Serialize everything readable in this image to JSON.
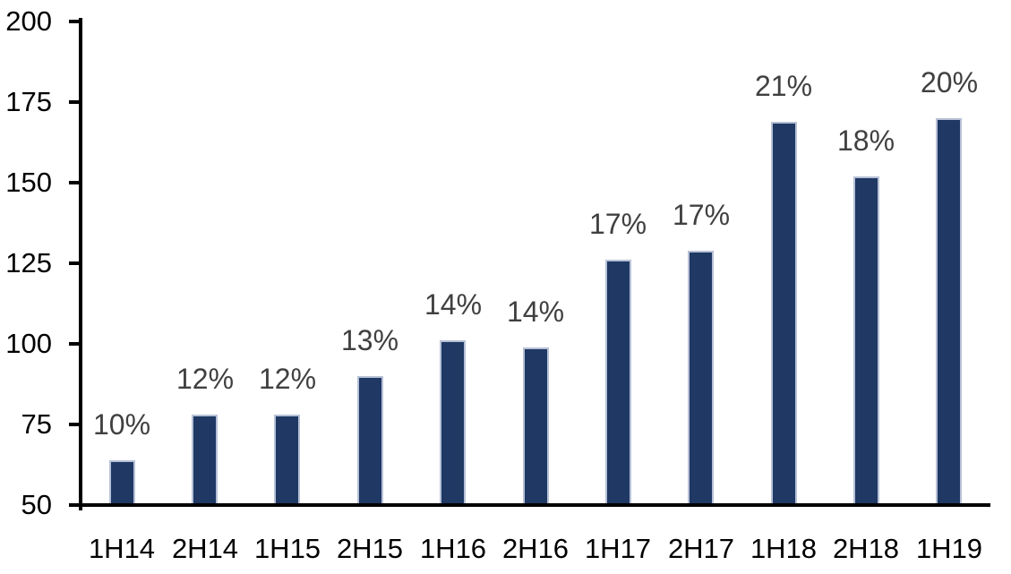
{
  "chart_data": {
    "type": "bar",
    "title": "",
    "xlabel": "",
    "ylabel": "",
    "categories": [
      "1H14",
      "2H14",
      "1H15",
      "2H15",
      "1H16",
      "2H16",
      "1H17",
      "2H17",
      "1H18",
      "2H18",
      "1H19"
    ],
    "series": [
      {
        "name": "value",
        "values": [
          64,
          78,
          78,
          90,
          101,
          99,
          126,
          129,
          169,
          152,
          170
        ]
      }
    ],
    "bar_labels": [
      "10%",
      "12%",
      "12%",
      "13%",
      "14%",
      "14%",
      "17%",
      "17%",
      "21%",
      "18%",
      "20%"
    ],
    "ylim": [
      50,
      200
    ],
    "ytick_interval": 25,
    "ytick_labels": [
      "50",
      "75",
      "100",
      "125",
      "150",
      "175",
      "200"
    ],
    "grid": false,
    "legend": "none",
    "colors": {
      "bar_fill": "#1F3864",
      "bar_border": "#B7C1D6",
      "data_label": "#404040",
      "axis": "#000000",
      "background": "#FFFFFF"
    }
  }
}
